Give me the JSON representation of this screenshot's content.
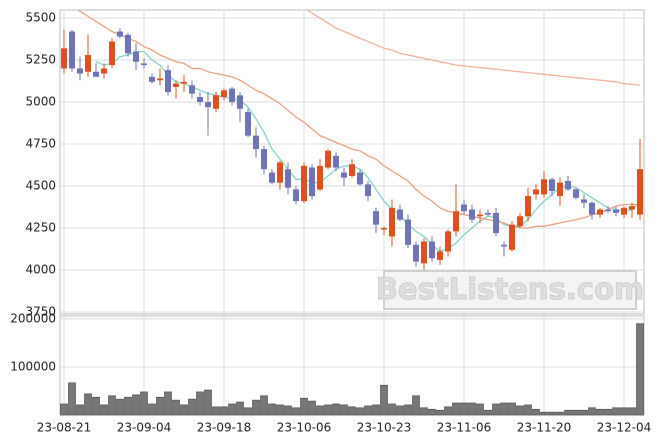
{
  "chart_data": [
    {
      "type": "candlestick",
      "categories": [
        "23-08-21",
        null,
        null,
        null,
        null,
        null,
        null,
        null,
        null,
        null,
        "23-09-04",
        null,
        null,
        null,
        null,
        null,
        null,
        null,
        null,
        null,
        "23-09-18",
        null,
        null,
        null,
        null,
        null,
        null,
        null,
        null,
        null,
        "23-10-06",
        null,
        null,
        null,
        null,
        null,
        null,
        null,
        null,
        null,
        "23-10-23",
        null,
        null,
        null,
        null,
        null,
        null,
        null,
        null,
        null,
        "23-11-06",
        null,
        null,
        null,
        null,
        null,
        null,
        null,
        null,
        null,
        "23-11-20",
        null,
        null,
        null,
        null,
        null,
        null,
        null,
        null,
        null,
        "23-12-04",
        null,
        null
      ],
      "open": [
        5200,
        5420,
        5200,
        5180,
        5180,
        5170,
        5220,
        5420,
        5400,
        5300,
        5230,
        5150,
        5130,
        5190,
        5090,
        5110,
        5100,
        5030,
        5000,
        4960,
        5030,
        5080,
        5040,
        4940,
        4800,
        4720,
        4580,
        4520,
        4600,
        4480,
        4410,
        4610,
        4480,
        4610,
        4680,
        4580,
        4560,
        4580,
        4510,
        4350,
        4250,
        4200,
        4360,
        4300,
        4150,
        4040,
        4170,
        4060,
        4110,
        4230,
        4390,
        4360,
        4320,
        4340,
        4340,
        4150,
        4120,
        4260,
        4320,
        4450,
        4450,
        4540,
        4440,
        4530,
        4480,
        4420,
        4400,
        4330,
        4360,
        4360,
        4330,
        4360,
        4330
      ],
      "high": [
        5430,
        5430,
        5270,
        5400,
        5230,
        5230,
        5380,
        5440,
        5410,
        5350,
        5260,
        5170,
        5200,
        5220,
        5130,
        5160,
        5130,
        5060,
        5060,
        5060,
        5080,
        5090,
        5060,
        4960,
        4850,
        4740,
        4600,
        4650,
        4640,
        4500,
        4640,
        4630,
        4660,
        4720,
        4700,
        4610,
        4660,
        4600,
        4530,
        4370,
        4260,
        4420,
        4390,
        4330,
        4170,
        4190,
        4200,
        4140,
        4240,
        4510,
        4420,
        4390,
        4360,
        4360,
        4370,
        4170,
        4290,
        4340,
        4490,
        4510,
        4590,
        4550,
        4550,
        4560,
        4490,
        4450,
        4410,
        4370,
        4380,
        4380,
        4380,
        4400,
        4780
      ],
      "low": [
        5170,
        5180,
        5130,
        5150,
        5150,
        5140,
        5200,
        5380,
        5270,
        5190,
        5200,
        5110,
        5100,
        5040,
        5020,
        5060,
        5020,
        4980,
        4800,
        4940,
        5010,
        4980,
        4880,
        4790,
        4670,
        4570,
        4510,
        4480,
        4450,
        4390,
        4400,
        4420,
        4470,
        4600,
        4590,
        4500,
        4550,
        4500,
        4410,
        4220,
        4210,
        4140,
        4290,
        4130,
        4020,
        4000,
        4050,
        4030,
        4080,
        4200,
        4330,
        4280,
        4280,
        4320,
        4200,
        4080,
        4110,
        4250,
        4290,
        4420,
        4430,
        4440,
        4380,
        4470,
        4420,
        4370,
        4300,
        4310,
        4340,
        4320,
        4310,
        4310,
        4300
      ],
      "close": [
        5320,
        5200,
        5170,
        5280,
        5150,
        5200,
        5360,
        5390,
        5290,
        5240,
        5220,
        5120,
        5140,
        5060,
        5110,
        5120,
        5050,
        5000,
        4970,
        5040,
        5070,
        5000,
        4960,
        4800,
        4720,
        4600,
        4520,
        4640,
        4490,
        4410,
        4620,
        4440,
        4620,
        4710,
        4610,
        4550,
        4630,
        4510,
        4440,
        4270,
        4250,
        4370,
        4300,
        4150,
        4050,
        4170,
        4070,
        4110,
        4230,
        4350,
        4350,
        4300,
        4330,
        4330,
        4220,
        4140,
        4270,
        4320,
        4440,
        4480,
        4540,
        4470,
        4520,
        4480,
        4430,
        4400,
        4330,
        4360,
        4350,
        4340,
        4370,
        4380,
        4600
      ],
      "up_color": "#e0501f",
      "down_color": "#6f74b7",
      "lines": [
        {
          "color": "#86d4c4",
          "values": [
            null,
            null,
            null,
            null,
            5240,
            5220,
            5230,
            5270,
            5280,
            5300,
            5300,
            5250,
            5220,
            5160,
            5120,
            5110,
            5090,
            5070,
            5050,
            5040,
            5030,
            5020,
            5010,
            4970,
            4900,
            4820,
            4720,
            4660,
            4600,
            4540,
            4540,
            4520,
            4520,
            4560,
            4600,
            4620,
            4620,
            4600,
            4550,
            4480,
            4410,
            4360,
            4330,
            4270,
            4230,
            4200,
            4150,
            4110,
            4130,
            4160,
            4210,
            4250,
            4290,
            4320,
            4310,
            4270,
            4260,
            4260,
            4300,
            4360,
            4410,
            4450,
            4490,
            4500,
            4490,
            4460,
            4430,
            4400,
            4370,
            4360,
            4350,
            4360,
            4410
          ]
        },
        {
          "color": "#e9a184",
          "values": [
            5600,
            5570,
            5540,
            5510,
            5480,
            5450,
            5420,
            5400,
            5380,
            5360,
            5330,
            5310,
            5280,
            5260,
            5240,
            5230,
            5200,
            5200,
            5180,
            5170,
            5160,
            5150,
            5130,
            5100,
            5070,
            5050,
            5020,
            4990,
            4950,
            4910,
            4880,
            4840,
            4800,
            4780,
            4760,
            4740,
            4720,
            4710,
            4680,
            4660,
            4620,
            4590,
            4560,
            4530,
            4480,
            4440,
            4410,
            4370,
            4350,
            4340,
            4330,
            4320,
            4310,
            4300,
            4290,
            4280,
            4260,
            4250,
            4250,
            4260,
            4260,
            4270,
            4280,
            4290,
            4300,
            4310,
            4330,
            4340,
            4360,
            4380,
            4390,
            4390,
            4390
          ]
        },
        {
          "color": "#eeb49c",
          "values": [
            null,
            null,
            null,
            null,
            null,
            null,
            null,
            null,
            null,
            null,
            null,
            null,
            null,
            null,
            null,
            null,
            null,
            null,
            null,
            null,
            null,
            null,
            null,
            null,
            null,
            null,
            null,
            null,
            null,
            null,
            5560,
            5530,
            5500,
            5470,
            5440,
            5420,
            5400,
            5380,
            5360,
            5340,
            5320,
            5310,
            5290,
            5280,
            5270,
            5260,
            5250,
            5240,
            5230,
            5220,
            5215,
            5210,
            5205,
            5200,
            5195,
            5190,
            5185,
            5180,
            5175,
            5170,
            5165,
            5160,
            5155,
            5150,
            5145,
            5140,
            5135,
            5130,
            5125,
            5120,
            5110,
            5105,
            5100
          ]
        }
      ],
      "ylim": [
        3738,
        5548
      ],
      "yticks": [
        3750,
        4000,
        4250,
        4500,
        4750,
        5000,
        5250,
        5500
      ],
      "watermark": "BestListens.com"
    },
    {
      "type": "bar",
      "color": "#777777",
      "values": [
        23000,
        67000,
        21000,
        44000,
        37000,
        21000,
        40000,
        33000,
        37000,
        42000,
        48000,
        23000,
        37000,
        48000,
        31000,
        21000,
        33000,
        48000,
        52000,
        17000,
        17000,
        23000,
        27000,
        15000,
        31000,
        40000,
        23000,
        21000,
        19000,
        15000,
        35000,
        29000,
        19000,
        21000,
        23000,
        21000,
        17000,
        15000,
        19000,
        21000,
        62000,
        23000,
        19000,
        21000,
        40000,
        15000,
        12000,
        10000,
        17000,
        25000,
        25000,
        25000,
        23000,
        10000,
        23000,
        25000,
        25000,
        19000,
        21000,
        12000,
        6000,
        6000,
        6000,
        10000,
        10000,
        10000,
        15000,
        12000,
        12000,
        15000,
        15000,
        15000,
        190000
      ],
      "ylim": [
        0,
        206000
      ],
      "yticks": [
        100000,
        200000
      ]
    }
  ]
}
